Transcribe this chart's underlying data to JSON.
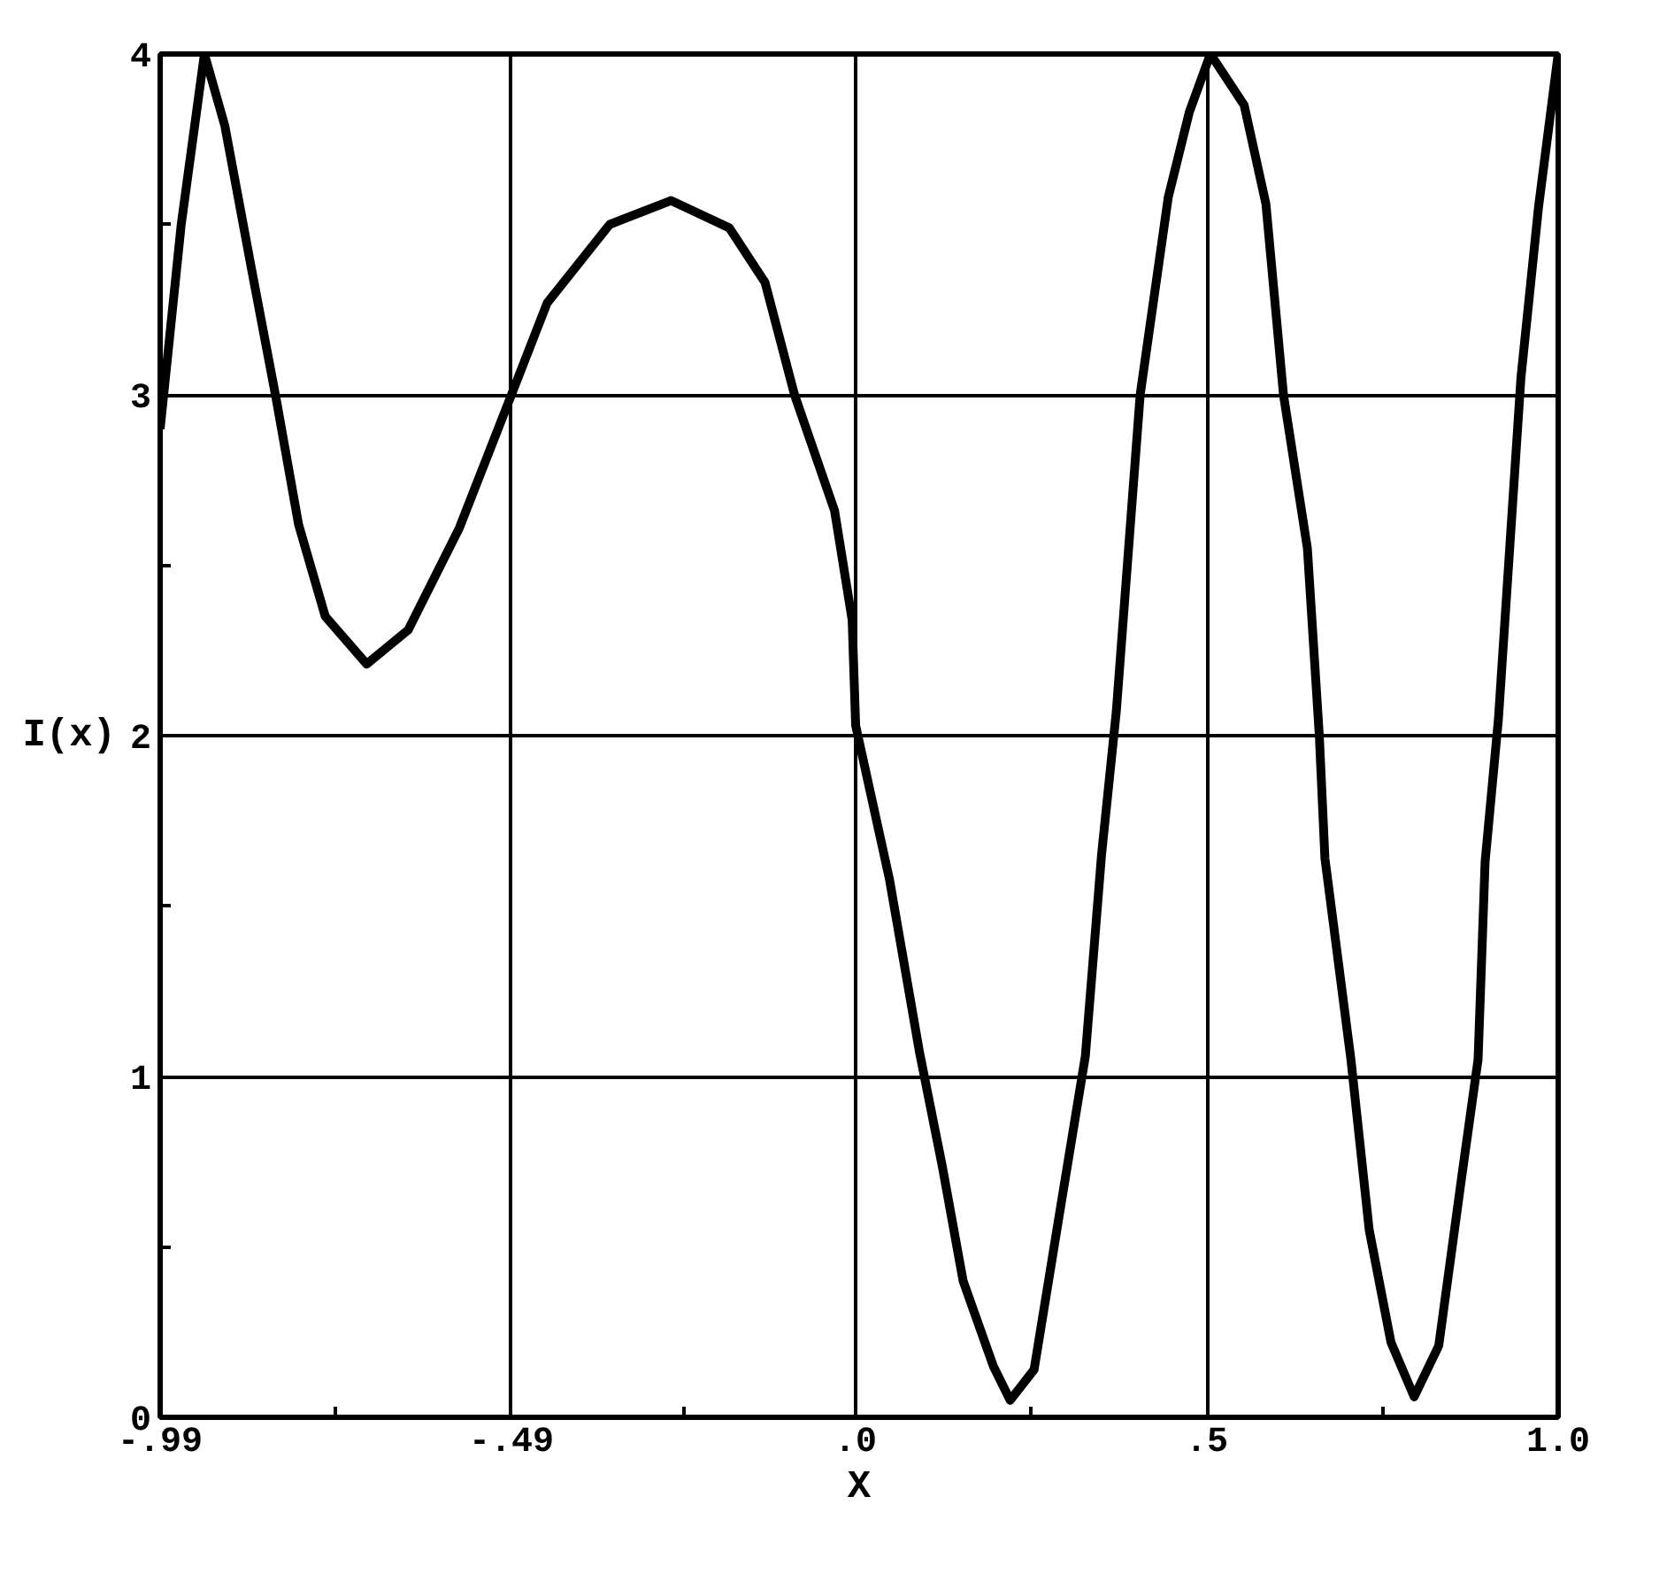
{
  "chart_data": {
    "type": "line",
    "xlabel": "X",
    "ylabel": "I(x)",
    "xlim": [
      -0.99,
      1.0
    ],
    "ylim": [
      0,
      4
    ],
    "xticks": [
      {
        "value": -0.99,
        "label": "-.99"
      },
      {
        "value": -0.74,
        "label": null
      },
      {
        "value": -0.49,
        "label": "-.49"
      },
      {
        "value": -0.245,
        "label": null
      },
      {
        "value": 0,
        "label": ".0"
      },
      {
        "value": 0.25,
        "label": null
      },
      {
        "value": 0.5,
        "label": ".5"
      },
      {
        "value": 0.75,
        "label": null
      },
      {
        "value": 1.0,
        "label": "1.0"
      }
    ],
    "yticks": [
      0,
      {
        "value": 0.5,
        "label": null
      },
      1,
      {
        "value": 1.5,
        "label": null
      },
      2,
      {
        "value": 2.5,
        "label": null
      },
      3,
      {
        "value": 3.5,
        "label": null
      },
      4
    ],
    "grid": true,
    "marker": "none",
    "line_style": "solid",
    "series": [
      {
        "color": "#000000",
        "x": [
          -0.99,
          -0.96,
          -0.927,
          -0.898,
          -0.86,
          -0.825,
          -0.793,
          -0.755,
          -0.696,
          -0.637,
          -0.564,
          -0.49,
          -0.439,
          -0.35,
          -0.263,
          -0.18,
          -0.129,
          -0.087,
          -0.03,
          -0.005,
          0.0,
          0.048,
          0.091,
          0.123,
          0.153,
          0.196,
          0.22,
          0.254,
          0.288,
          0.327,
          0.35,
          0.371,
          0.405,
          0.445,
          0.475,
          0.505,
          0.553,
          0.584,
          0.609,
          0.643,
          0.66,
          0.668,
          0.705,
          0.731,
          0.762,
          0.795,
          0.83,
          0.863,
          0.886,
          0.896,
          0.915,
          0.947,
          0.972,
          1.0
        ],
        "values": [
          2.9,
          3.5,
          4.0,
          3.79,
          3.37,
          2.99,
          2.62,
          2.35,
          2.21,
          2.31,
          2.61,
          3.0,
          3.27,
          3.5,
          3.57,
          3.49,
          3.33,
          3.0,
          2.66,
          2.34,
          2.03,
          1.58,
          1.07,
          0.74,
          0.4,
          0.15,
          0.05,
          0.14,
          0.57,
          1.06,
          1.65,
          2.07,
          3.0,
          3.58,
          3.83,
          4.0,
          3.85,
          3.56,
          3.0,
          2.55,
          2.0,
          1.64,
          1.05,
          0.55,
          0.22,
          0.06,
          0.21,
          0.71,
          1.05,
          1.63,
          2.05,
          3.05,
          3.55,
          4.0
        ]
      }
    ]
  }
}
